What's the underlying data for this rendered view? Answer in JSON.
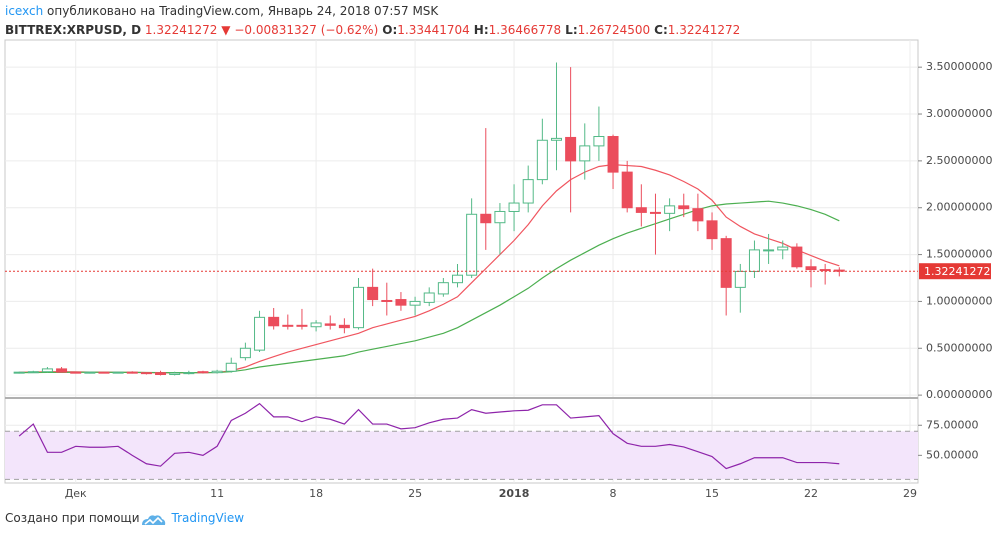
{
  "header": {
    "author": "icexch",
    "published": "опубликовано на TradingView.com, Январь 24, 2018 07:57 MSK",
    "symbol": "BITTREX:XRPUSD, D",
    "last": "1.32241272",
    "change": "−0.00831327 (−0.62%)",
    "ohlc": [
      {
        "key": "O:",
        "value": "1.33441704"
      },
      {
        "key": "H:",
        "value": "1.36466778"
      },
      {
        "key": "L:",
        "value": "1.26724500"
      },
      {
        "key": "C:",
        "value": "1.32241272"
      }
    ]
  },
  "chart_data": [
    {
      "type": "candlestick",
      "x": [
        "2017-11-27",
        "2017-11-28",
        "2017-11-29",
        "2017-11-30",
        "2017-12-01",
        "2017-12-02",
        "2017-12-03",
        "2017-12-04",
        "2017-12-05",
        "2017-12-06",
        "2017-12-07",
        "2017-12-08",
        "2017-12-09",
        "2017-12-10",
        "2017-12-11",
        "2017-12-12",
        "2017-12-13",
        "2017-12-14",
        "2017-12-15",
        "2017-12-16",
        "2017-12-17",
        "2017-12-18",
        "2017-12-19",
        "2017-12-20",
        "2017-12-21",
        "2017-12-22",
        "2017-12-23",
        "2017-12-24",
        "2017-12-25",
        "2017-12-26",
        "2017-12-27",
        "2017-12-28",
        "2017-12-29",
        "2017-12-30",
        "2017-12-31",
        "2018-01-01",
        "2018-01-02",
        "2018-01-03",
        "2018-01-04",
        "2018-01-05",
        "2018-01-06",
        "2018-01-07",
        "2018-01-08",
        "2018-01-09",
        "2018-01-10",
        "2018-01-11",
        "2018-01-12",
        "2018-01-13",
        "2018-01-14",
        "2018-01-15",
        "2018-01-16",
        "2018-01-17",
        "2018-01-18",
        "2018-01-19",
        "2018-01-20",
        "2018-01-21",
        "2018-01-22",
        "2018-01-23",
        "2018-01-24"
      ],
      "open": [
        0.235,
        0.245,
        0.25,
        0.28,
        0.245,
        0.24,
        0.245,
        0.24,
        0.245,
        0.24,
        0.24,
        0.22,
        0.235,
        0.25,
        0.24,
        0.255,
        0.4,
        0.48,
        0.83,
        0.745,
        0.745,
        0.73,
        0.76,
        0.745,
        0.72,
        1.15,
        1.01,
        1.02,
        0.96,
        0.99,
        1.08,
        1.2,
        1.28,
        1.93,
        1.84,
        1.96,
        2.05,
        2.3,
        2.72,
        2.75,
        2.5,
        2.66,
        2.76,
        2.38,
        2.0,
        1.95,
        1.94,
        2.02,
        1.99,
        1.86,
        1.67,
        1.15,
        1.32,
        1.54,
        1.55,
        1.58,
        1.37,
        1.34,
        1.33441704
      ],
      "high": [
        0.25,
        0.26,
        0.3,
        0.3,
        0.25,
        0.25,
        0.25,
        0.25,
        0.255,
        0.245,
        0.26,
        0.25,
        0.26,
        0.26,
        0.27,
        0.4,
        0.56,
        0.9,
        0.93,
        0.86,
        0.92,
        0.8,
        0.85,
        0.82,
        1.25,
        1.35,
        1.2,
        1.1,
        1.05,
        1.15,
        1.25,
        1.4,
        2.1,
        2.85,
        2.05,
        2.25,
        2.45,
        2.95,
        3.55,
        3.5,
        2.9,
        3.08,
        2.78,
        2.5,
        2.25,
        2.15,
        2.1,
        2.15,
        2.15,
        1.95,
        1.7,
        1.4,
        1.65,
        1.72,
        1.65,
        1.62,
        1.45,
        1.4,
        1.36466778
      ],
      "low": [
        0.23,
        0.24,
        0.24,
        0.24,
        0.235,
        0.23,
        0.235,
        0.235,
        0.23,
        0.22,
        0.21,
        0.21,
        0.22,
        0.23,
        0.23,
        0.24,
        0.37,
        0.46,
        0.7,
        0.7,
        0.7,
        0.68,
        0.7,
        0.66,
        0.7,
        0.95,
        0.85,
        0.9,
        0.85,
        0.95,
        1.05,
        1.15,
        1.25,
        1.55,
        1.5,
        1.75,
        1.95,
        2.25,
        2.4,
        1.95,
        2.3,
        2.5,
        2.2,
        1.95,
        1.8,
        1.5,
        1.75,
        1.9,
        1.75,
        1.55,
        0.85,
        0.88,
        1.25,
        1.4,
        1.45,
        1.35,
        1.15,
        1.18,
        1.267245
      ],
      "close": [
        0.245,
        0.25,
        0.28,
        0.245,
        0.24,
        0.245,
        0.24,
        0.245,
        0.24,
        0.23,
        0.22,
        0.235,
        0.24,
        0.24,
        0.255,
        0.34,
        0.5,
        0.83,
        0.74,
        0.74,
        0.74,
        0.77,
        0.745,
        0.72,
        1.15,
        1.02,
        1.0,
        0.96,
        1.0,
        1.09,
        1.2,
        1.28,
        1.93,
        1.84,
        1.96,
        2.05,
        2.3,
        2.72,
        2.74,
        2.5,
        2.66,
        2.76,
        2.38,
        2.0,
        1.95,
        1.94,
        2.02,
        1.99,
        1.86,
        1.67,
        1.15,
        1.32,
        1.55,
        1.55,
        1.58,
        1.37,
        1.34,
        1.334,
        1.32241272
      ],
      "up_color": "#53b987",
      "down_color": "#eb4d5c",
      "overlays": [
        {
          "color": "#f0555f",
          "values": [
            0.245,
            0.246,
            0.25,
            0.25,
            0.248,
            0.246,
            0.245,
            0.244,
            0.243,
            0.24,
            0.238,
            0.237,
            0.238,
            0.24,
            0.242,
            0.26,
            0.3,
            0.36,
            0.41,
            0.46,
            0.5,
            0.54,
            0.58,
            0.62,
            0.66,
            0.72,
            0.76,
            0.8,
            0.84,
            0.9,
            0.97,
            1.05,
            1.2,
            1.35,
            1.5,
            1.65,
            1.82,
            2.02,
            2.18,
            2.3,
            2.38,
            2.44,
            2.46,
            2.45,
            2.44,
            2.4,
            2.35,
            2.28,
            2.2,
            2.08,
            1.9,
            1.8,
            1.72,
            1.67,
            1.62,
            1.55,
            1.49,
            1.43,
            1.38
          ]
        },
        {
          "color": "#4caf50",
          "values": [
            0.24,
            0.241,
            0.242,
            0.243,
            0.244,
            0.244,
            0.244,
            0.243,
            0.243,
            0.242,
            0.241,
            0.24,
            0.24,
            0.24,
            0.241,
            0.25,
            0.27,
            0.3,
            0.32,
            0.34,
            0.36,
            0.38,
            0.4,
            0.42,
            0.46,
            0.49,
            0.52,
            0.55,
            0.58,
            0.62,
            0.66,
            0.72,
            0.8,
            0.88,
            0.96,
            1.05,
            1.14,
            1.25,
            1.35,
            1.44,
            1.52,
            1.6,
            1.67,
            1.73,
            1.78,
            1.83,
            1.88,
            1.93,
            1.98,
            2.02,
            2.04,
            2.05,
            2.06,
            2.07,
            2.05,
            2.02,
            1.98,
            1.93,
            1.86
          ]
        }
      ],
      "last_price": 1.32241272,
      "last_price_color": "#e53935",
      "xlim": [
        "2017-11-26",
        "2018-01-29"
      ],
      "ylim": [
        -0.02,
        3.79
      ],
      "yticks": [
        {
          "value": 0,
          "label": "0.00000000"
        },
        {
          "value": 0.5,
          "label": "0.50000000"
        },
        {
          "value": 1,
          "label": "1.00000000"
        },
        {
          "value": 1.5,
          "label": "1.50000000"
        },
        {
          "value": 2,
          "label": "2.00000000"
        },
        {
          "value": 2.5,
          "label": "2.50000000"
        },
        {
          "value": 3,
          "label": "3.00000000"
        },
        {
          "value": 3.5,
          "label": "3.50000000"
        }
      ],
      "grid": true
    },
    {
      "type": "line",
      "x": [
        "2017-11-27",
        "2017-11-28",
        "2017-11-29",
        "2017-11-30",
        "2017-12-01",
        "2017-12-02",
        "2017-12-03",
        "2017-12-04",
        "2017-12-05",
        "2017-12-06",
        "2017-12-07",
        "2017-12-08",
        "2017-12-09",
        "2017-12-10",
        "2017-12-11",
        "2017-12-12",
        "2017-12-13",
        "2017-12-14",
        "2017-12-15",
        "2017-12-16",
        "2017-12-17",
        "2017-12-18",
        "2017-12-19",
        "2017-12-20",
        "2017-12-21",
        "2017-12-22",
        "2017-12-23",
        "2017-12-24",
        "2017-12-25",
        "2017-12-26",
        "2017-12-27",
        "2017-12-28",
        "2017-12-29",
        "2017-12-30",
        "2017-12-31",
        "2018-01-01",
        "2018-01-02",
        "2018-01-03",
        "2018-01-04",
        "2018-01-05",
        "2018-01-06",
        "2018-01-07",
        "2018-01-08",
        "2018-01-09",
        "2018-01-10",
        "2018-01-11",
        "2018-01-12",
        "2018-01-13",
        "2018-01-14",
        "2018-01-15",
        "2018-01-16",
        "2018-01-17",
        "2018-01-18",
        "2018-01-19",
        "2018-01-20",
        "2018-01-21",
        "2018-01-22",
        "2018-01-23",
        "2018-01-24"
      ],
      "values": [
        66,
        76,
        52.5,
        52.5,
        57.5,
        56.7,
        56.7,
        57.5,
        50,
        43,
        41,
        51.7,
        52.5,
        50,
        57.5,
        79,
        85,
        93,
        82,
        82,
        78,
        82,
        80,
        76,
        88,
        76,
        76,
        72,
        73,
        77,
        80,
        81,
        88,
        85,
        86,
        87,
        87.5,
        92,
        92,
        81,
        82,
        83,
        68,
        60,
        57.5,
        57.5,
        59,
        57,
        53,
        49,
        39,
        43,
        48,
        48,
        48,
        44,
        44,
        44,
        43
      ],
      "color": "#8e24aa",
      "bands": [
        30,
        70
      ],
      "band_color": "#f3e5fb",
      "xlim": [
        "2017-11-26",
        "2018-01-29"
      ],
      "xticks": [
        {
          "value": "2017-12-01",
          "label": "Дек"
        },
        {
          "value": "2017-12-11",
          "label": "11"
        },
        {
          "value": "2017-12-18",
          "label": "18"
        },
        {
          "value": "2017-12-25",
          "label": "25"
        },
        {
          "value": "2018-01-01",
          "label": "2018"
        },
        {
          "value": "2018-01-08",
          "label": "8"
        },
        {
          "value": "2018-01-15",
          "label": "15"
        },
        {
          "value": "2018-01-22",
          "label": "22"
        },
        {
          "value": "2018-01-29",
          "label": "29"
        }
      ],
      "ylim": [
        27,
        96
      ],
      "yticks": [
        {
          "value": 50,
          "label": "50.00000"
        },
        {
          "value": 75,
          "label": "75.00000"
        }
      ],
      "grid": true
    }
  ],
  "footer": {
    "text": "Создано при помощи",
    "brand": "TradingView"
  }
}
